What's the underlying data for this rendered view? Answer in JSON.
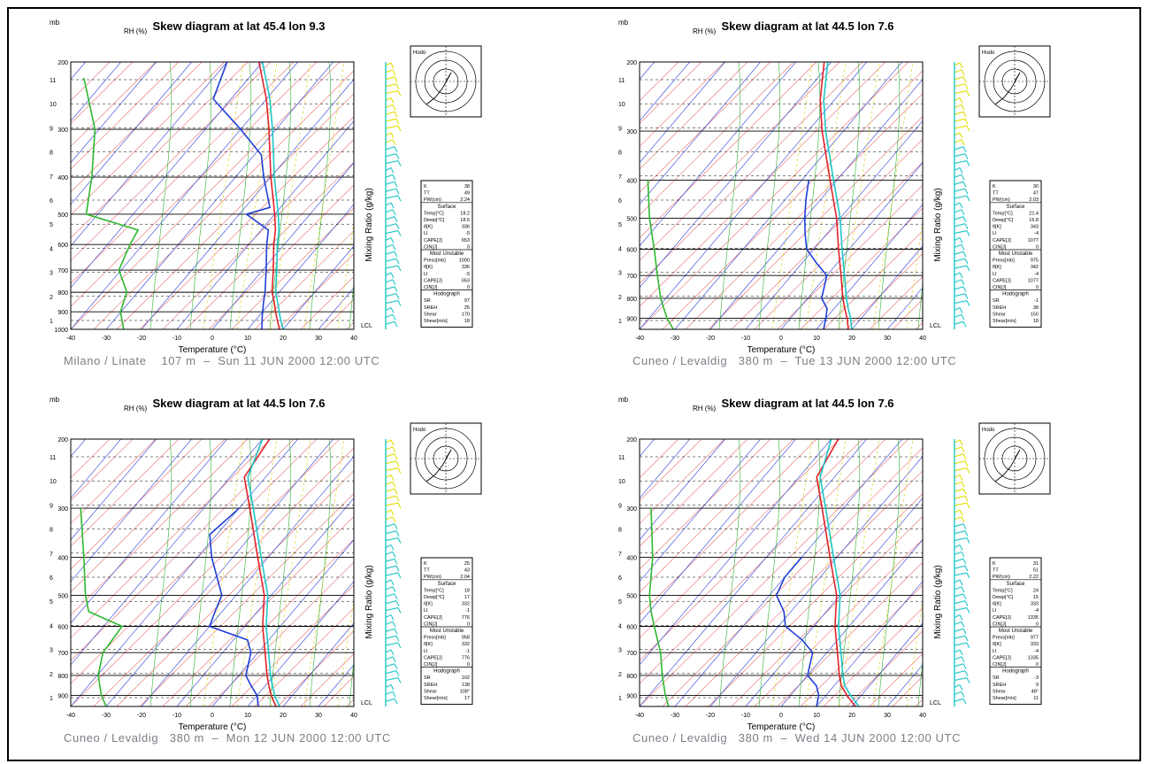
{
  "page": {
    "frame_color": "#000000"
  },
  "common": {
    "units_label": "mb",
    "rh_label": "RH (%)",
    "x_axis_label": "Temperature (°C)",
    "x_ticks": [
      -40,
      -30,
      -20,
      -10,
      0,
      10,
      20,
      30,
      40
    ],
    "mixing_label": "Mixing Ratio (g/kg)",
    "lcl_label": "LCL",
    "hodo_label": "Hodo"
  },
  "colors": {
    "temperature": "#e0242a",
    "dewpoint": "#1f3fd6",
    "virtual_temp": "#1fc6c6",
    "humidity": "#2eb82e",
    "isotherm": "#2b3fd9",
    "dry_adiabat": "#e86c6c",
    "moist_adiabat": "#33b233",
    "mixing": "#d8d000",
    "wind_low": "#1fc6c6",
    "wind_high": "#e0e000"
  },
  "chart_data": [
    {
      "type": "line",
      "title": "Skew diagram at lat 45.4 lon 9.3",
      "caption": "Milano / Linate    107 m  –  Sun 11 JUN 2000 12:00 UTC",
      "xlabel": "Temperature (°C)",
      "ylabel": "mb",
      "xlim": [
        -40,
        40
      ],
      "pressure_ticks": [
        200,
        300,
        400,
        500,
        600,
        700,
        800,
        900,
        1000
      ],
      "height_ticks": [
        "11",
        "10",
        "9",
        "8",
        "7",
        "6",
        "5",
        "4",
        "3",
        "2",
        "1"
      ],
      "series": [
        {
          "p": [
            1000,
            925,
            850,
            800,
            700,
            600,
            550,
            500,
            400,
            300,
            250,
            200
          ],
          "temperature": [
            19,
            15,
            11,
            8,
            3,
            -3,
            -6,
            -10,
            -20,
            -32,
            -40,
            -51
          ]
        },
        {
          "p": [
            1000,
            925,
            850,
            800,
            700,
            600,
            550,
            500,
            480,
            400,
            350,
            300,
            250,
            200
          ],
          "dewpoint": [
            14,
            11,
            8,
            6,
            1,
            -5,
            -8,
            -18,
            -13,
            -22,
            -28,
            -40,
            -55,
            -60
          ]
        },
        {
          "p": [
            1000,
            925,
            850,
            800,
            700,
            600,
            550,
            500,
            400,
            300,
            250,
            200
          ],
          "virtual_temp": [
            20,
            16,
            12,
            9,
            4,
            -2,
            -5,
            -9,
            -19,
            -31,
            -39,
            -50
          ]
        }
      ],
      "humidity_profile": [
        {
          "p": 1000,
          "rh": 62
        },
        {
          "p": 900,
          "rh": 58
        },
        {
          "p": 800,
          "rh": 66
        },
        {
          "p": 700,
          "rh": 56
        },
        {
          "p": 600,
          "rh": 70
        },
        {
          "p": 550,
          "rh": 80
        },
        {
          "p": 500,
          "rh": 15
        },
        {
          "p": 400,
          "rh": 22
        },
        {
          "p": 300,
          "rh": 26
        },
        {
          "p": 220,
          "rh": 12
        }
      ],
      "stability_indices": [
        {
          "label": "K",
          "value": "38"
        },
        {
          "label": "TT",
          "value": "49"
        },
        {
          "label": "PW(cm)",
          "value": "2.24"
        }
      ],
      "surface_section": [
        {
          "label": "Temp[°C]",
          "value": "18.2"
        },
        {
          "label": "Dewp[°C]",
          "value": "18.5"
        },
        {
          "label": "θ[K]",
          "value": "336"
        },
        {
          "label": "LI",
          "value": "-5"
        },
        {
          "label": "CAPE[J]",
          "value": "653"
        },
        {
          "label": "CIN[J]",
          "value": "0"
        }
      ],
      "most_unstable_section": [
        {
          "label": "Press[mb]",
          "value": "1000"
        },
        {
          "label": "θ[K]",
          "value": "336"
        },
        {
          "label": "LI",
          "value": "-5"
        },
        {
          "label": "CAPE[J]",
          "value": "653"
        },
        {
          "label": "CIN[J]",
          "value": "0"
        }
      ],
      "hodograph_section": [
        {
          "label": "SR",
          "value": "97"
        },
        {
          "label": "SREH",
          "value": "25"
        },
        {
          "label": "Shear",
          "value": "170"
        },
        {
          "label": "Shear[m/s]",
          "value": "18"
        }
      ]
    },
    {
      "type": "line",
      "title": "Skew diagram at lat 44.5 lon 7.6",
      "caption": "Cuneo / Levaldig   380 m  –  Tue 13 JUN 2000 12:00 UTC",
      "xlabel": "Temperature (°C)",
      "ylabel": "mb",
      "xlim": [
        -40,
        40
      ],
      "pressure_ticks": [
        200,
        300,
        400,
        500,
        600,
        700,
        800,
        900
      ],
      "height_ticks": [
        "11",
        "10",
        "9",
        "8",
        "7",
        "6",
        "5",
        "4",
        "3",
        "2",
        "1"
      ],
      "series": [
        {
          "p": [
            960,
            900,
            850,
            800,
            700,
            600,
            500,
            400,
            300,
            250,
            200
          ],
          "temperature": [
            19,
            16,
            13,
            10,
            4,
            -3,
            -11,
            -22,
            -36,
            -44,
            -52
          ]
        },
        {
          "p": [
            960,
            900,
            850,
            800,
            700,
            650,
            600,
            550,
            500,
            450,
            400
          ],
          "dewpoint": [
            12,
            10,
            8,
            4,
            0,
            -6,
            -12,
            -16,
            -20,
            -24,
            -28
          ]
        },
        {
          "p": [
            960,
            900,
            850,
            800,
            700,
            600,
            500,
            400,
            300,
            250,
            200
          ],
          "virtual_temp": [
            20,
            17,
            14,
            11,
            5,
            -2,
            -10,
            -21,
            -35,
            -43,
            -51
          ]
        }
      ],
      "humidity_profile": [
        {
          "p": 960,
          "rh": 38
        },
        {
          "p": 900,
          "rh": 30
        },
        {
          "p": 800,
          "rh": 22
        },
        {
          "p": 700,
          "rh": 18
        },
        {
          "p": 600,
          "rh": 14
        },
        {
          "p": 500,
          "rh": 8
        },
        {
          "p": 400,
          "rh": 6
        }
      ],
      "stability_indices": [
        {
          "label": "K",
          "value": "30"
        },
        {
          "label": "TT",
          "value": "47"
        },
        {
          "label": "PW(cm)",
          "value": "2.03"
        }
      ],
      "surface_section": [
        {
          "label": "Temp[°C]",
          "value": "21.4"
        },
        {
          "label": "Dewp[°C]",
          "value": "16.8"
        },
        {
          "label": "θ[K]",
          "value": "343"
        },
        {
          "label": "LI",
          "value": "-4"
        },
        {
          "label": "CAPE[J]",
          "value": "1077"
        },
        {
          "label": "CIN[J]",
          "value": "0"
        }
      ],
      "most_unstable_section": [
        {
          "label": "Press[mb]",
          "value": "975"
        },
        {
          "label": "θ[K]",
          "value": "342"
        },
        {
          "label": "LI",
          "value": "-4"
        },
        {
          "label": "CAPE[J]",
          "value": "1077"
        },
        {
          "label": "CIN[J]",
          "value": "0"
        }
      ],
      "hodograph_section": [
        {
          "label": "SR",
          "value": "-1"
        },
        {
          "label": "SREH",
          "value": "38"
        },
        {
          "label": "Shear",
          "value": "150"
        },
        {
          "label": "Shear[m/s]",
          "value": "18"
        }
      ]
    },
    {
      "type": "line",
      "title": "Skew diagram at lat 44.5 lon 7.6",
      "caption": "Cuneo / Levaldig   380 m  –  Mon 12 JUN 2000 12:00 UTC",
      "xlabel": "Temperature (°C)",
      "ylabel": "mb",
      "xlim": [
        -40,
        40
      ],
      "pressure_ticks": [
        200,
        300,
        400,
        500,
        600,
        700,
        800,
        900
      ],
      "height_ticks": [
        "11",
        "10",
        "9",
        "8",
        "7",
        "6",
        "5",
        "4",
        "3",
        "2",
        "1"
      ],
      "series": [
        {
          "p": [
            960,
            900,
            850,
            800,
            700,
            600,
            500,
            400,
            300,
            250,
            200
          ],
          "temperature": [
            18,
            14,
            11,
            8,
            2,
            -5,
            -12,
            -23,
            -37,
            -46,
            -48
          ]
        },
        {
          "p": [
            960,
            900,
            850,
            800,
            700,
            650,
            600,
            550,
            500,
            400,
            350,
            300
          ],
          "dewpoint": [
            13,
            10,
            6,
            2,
            -2,
            -6,
            -20,
            -22,
            -24,
            -36,
            -42,
            -40
          ]
        },
        {
          "p": [
            960,
            900,
            850,
            800,
            700,
            600,
            500,
            400,
            300,
            250,
            200
          ],
          "virtual_temp": [
            19,
            15,
            12,
            9,
            3,
            -4,
            -11,
            -22,
            -36,
            -45,
            -50
          ]
        }
      ],
      "humidity_profile": [
        {
          "p": 960,
          "rh": 40
        },
        {
          "p": 900,
          "rh": 34
        },
        {
          "p": 800,
          "rh": 30
        },
        {
          "p": 700,
          "rh": 36
        },
        {
          "p": 600,
          "rh": 60
        },
        {
          "p": 550,
          "rh": 18
        },
        {
          "p": 500,
          "rh": 14
        },
        {
          "p": 400,
          "rh": 12
        },
        {
          "p": 300,
          "rh": 8
        }
      ],
      "stability_indices": [
        {
          "label": "K",
          "value": "25"
        },
        {
          "label": "TT",
          "value": "43"
        },
        {
          "label": "PW(cm)",
          "value": "2.04"
        }
      ],
      "surface_section": [
        {
          "label": "Temp[°C]",
          "value": "18"
        },
        {
          "label": "Dewp[°C]",
          "value": "17"
        },
        {
          "label": "θ[K]",
          "value": "332"
        },
        {
          "label": "LI",
          "value": "-1"
        },
        {
          "label": "CAPE[J]",
          "value": "776"
        },
        {
          "label": "CIN[J]",
          "value": "0"
        }
      ],
      "most_unstable_section": [
        {
          "label": "Press[mb]",
          "value": "958"
        },
        {
          "label": "θ[K]",
          "value": "332"
        },
        {
          "label": "LI",
          "value": "-1"
        },
        {
          "label": "CAPE[J]",
          "value": "776"
        },
        {
          "label": "CIN[J]",
          "value": "0"
        }
      ],
      "hodograph_section": [
        {
          "label": "SR",
          "value": "102"
        },
        {
          "label": "SREH",
          "value": "138"
        },
        {
          "label": "Shear",
          "value": "108°"
        },
        {
          "label": "Shear[m/s]",
          "value": "17"
        }
      ]
    },
    {
      "type": "line",
      "title": "Skew diagram at lat 44.5 lon 7.6",
      "caption": "Cuneo / Levaldig   380 m  –  Wed 14 JUN 2000 12:00 UTC",
      "xlabel": "Temperature (°C)",
      "ylabel": "mb",
      "xlim": [
        -40,
        40
      ],
      "pressure_ticks": [
        200,
        300,
        400,
        500,
        600,
        700,
        800,
        900
      ],
      "height_ticks": [
        "11",
        "10",
        "9",
        "8",
        "7",
        "6",
        "5",
        "4",
        "3",
        "2",
        "1"
      ],
      "series": [
        {
          "p": [
            960,
            900,
            850,
            800,
            700,
            600,
            500,
            400,
            300,
            250,
            200
          ],
          "temperature": [
            21,
            16,
            12,
            9,
            3,
            -4,
            -11,
            -22,
            -36,
            -45,
            -48
          ]
        },
        {
          "p": [
            960,
            900,
            850,
            800,
            700,
            650,
            600,
            550,
            500,
            450,
            400
          ],
          "dewpoint": [
            10,
            8,
            5,
            0,
            -4,
            -10,
            -18,
            -22,
            -28,
            -30,
            -30
          ]
        },
        {
          "p": [
            960,
            900,
            850,
            800,
            700,
            600,
            500,
            400,
            300,
            250,
            200
          ],
          "virtual_temp": [
            22,
            17,
            13,
            10,
            4,
            -3,
            -10,
            -21,
            -35,
            -44,
            -50
          ]
        }
      ],
      "humidity_profile": [
        {
          "p": 960,
          "rh": 32
        },
        {
          "p": 900,
          "rh": 28
        },
        {
          "p": 800,
          "rh": 24
        },
        {
          "p": 700,
          "rh": 22
        },
        {
          "p": 600,
          "rh": 14
        },
        {
          "p": 550,
          "rh": 10
        },
        {
          "p": 500,
          "rh": 8
        },
        {
          "p": 400,
          "rh": 12
        },
        {
          "p": 300,
          "rh": 10
        }
      ],
      "stability_indices": [
        {
          "label": "K",
          "value": "31"
        },
        {
          "label": "TT",
          "value": "51"
        },
        {
          "label": "PW(cm)",
          "value": "2.22"
        }
      ],
      "surface_section": [
        {
          "label": "Temp[°C]",
          "value": "24"
        },
        {
          "label": "Dewp[°C]",
          "value": "15"
        },
        {
          "label": "θ[K]",
          "value": "333"
        },
        {
          "label": "LI",
          "value": "-4"
        },
        {
          "label": "CAPE[J]",
          "value": "1335"
        },
        {
          "label": "CIN[J]",
          "value": "0"
        }
      ],
      "most_unstable_section": [
        {
          "label": "Press[mb]",
          "value": "977"
        },
        {
          "label": "θ[K]",
          "value": "333"
        },
        {
          "label": "LI",
          "value": "-4"
        },
        {
          "label": "CAPE[J]",
          "value": "1335"
        },
        {
          "label": "CIN[J]",
          "value": "0"
        }
      ],
      "hodograph_section": [
        {
          "label": "SR",
          "value": "-3"
        },
        {
          "label": "SREH",
          "value": "9"
        },
        {
          "label": "Shear",
          "value": "48°"
        },
        {
          "label": "Shear[m/s]",
          "value": "11"
        }
      ]
    }
  ]
}
